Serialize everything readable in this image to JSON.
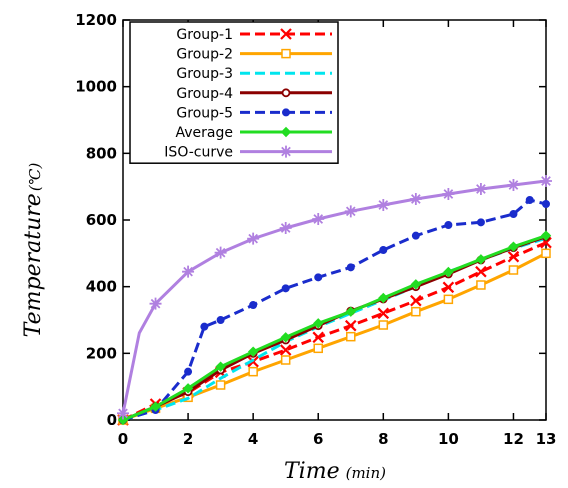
{
  "chart_data": {
    "type": "line",
    "title": "",
    "xlabel": "Time",
    "xlabel_unit": "(min)",
    "ylabel": "Temperature",
    "ylabel_unit": "(℃)",
    "xlim": [
      0,
      13
    ],
    "ylim": [
      0,
      1200
    ],
    "xticks": [
      0,
      2,
      4,
      6,
      8,
      10,
      12,
      13
    ],
    "yticks": [
      0,
      200,
      400,
      600,
      800,
      1000,
      1200
    ],
    "grid": false,
    "legend": "top-left",
    "series": [
      {
        "name": "Group-1",
        "color": "#ff0000",
        "dash": "dashed",
        "marker": "x",
        "x": [
          0,
          1,
          2,
          3,
          4,
          5,
          6,
          7,
          8,
          9,
          10,
          11,
          12,
          13
        ],
        "y": [
          0,
          48,
          82,
          143,
          175,
          210,
          248,
          283,
          320,
          358,
          398,
          445,
          490,
          532
        ]
      },
      {
        "name": "Group-2",
        "color": "#ffa500",
        "dash": "solid",
        "marker": "square",
        "x": [
          0,
          1,
          2,
          3,
          4,
          5,
          6,
          7,
          8,
          9,
          10,
          11,
          12,
          13
        ],
        "y": [
          0,
          35,
          68,
          105,
          145,
          180,
          215,
          250,
          285,
          325,
          362,
          405,
          450,
          500
        ]
      },
      {
        "name": "Group-3",
        "color": "#00e5ee",
        "dash": "dashed",
        "marker": "none",
        "x": [
          0,
          1,
          2,
          3,
          4,
          5,
          6,
          7,
          8,
          9,
          10,
          11,
          12,
          13
        ],
        "y": [
          0,
          30,
          65,
          125,
          180,
          235,
          280,
          320,
          360,
          400,
          445,
          480,
          515,
          545
        ]
      },
      {
        "name": "Group-4",
        "color": "#8b0000",
        "dash": "solid",
        "marker": "circle",
        "x": [
          0,
          1,
          2,
          3,
          4,
          5,
          6,
          7,
          8,
          9,
          10,
          11,
          12,
          13
        ],
        "y": [
          0,
          40,
          85,
          150,
          200,
          240,
          283,
          327,
          363,
          400,
          438,
          480,
          517,
          550
        ]
      },
      {
        "name": "Group-5",
        "color": "#1a2ccc",
        "dash": "dashed",
        "marker": "dot",
        "x": [
          0,
          1,
          2,
          2.5,
          3,
          4,
          5,
          6,
          7,
          8,
          9,
          10,
          11,
          12,
          12.5,
          13
        ],
        "y": [
          0,
          30,
          145,
          280,
          300,
          345,
          395,
          428,
          458,
          510,
          553,
          585,
          593,
          618,
          660,
          648
        ]
      },
      {
        "name": "Average",
        "color": "#22dd22",
        "dash": "solid",
        "marker": "diamond",
        "x": [
          0,
          1,
          2,
          3,
          4,
          5,
          6,
          7,
          8,
          9,
          10,
          11,
          12,
          13
        ],
        "y": [
          0,
          40,
          95,
          160,
          205,
          248,
          290,
          325,
          366,
          407,
          444,
          482,
          520,
          553
        ]
      },
      {
        "name": "ISO-curve",
        "color": "#b080e0",
        "dash": "solid",
        "marker": "asterisk",
        "x": [
          0,
          0.5,
          1,
          2,
          3,
          4,
          5,
          6,
          7,
          8,
          9,
          10,
          11,
          12,
          13
        ],
        "y": [
          20,
          261,
          349,
          445,
          502,
          544,
          576,
          603,
          626,
          645,
          663,
          678,
          693,
          705,
          717
        ]
      }
    ]
  }
}
